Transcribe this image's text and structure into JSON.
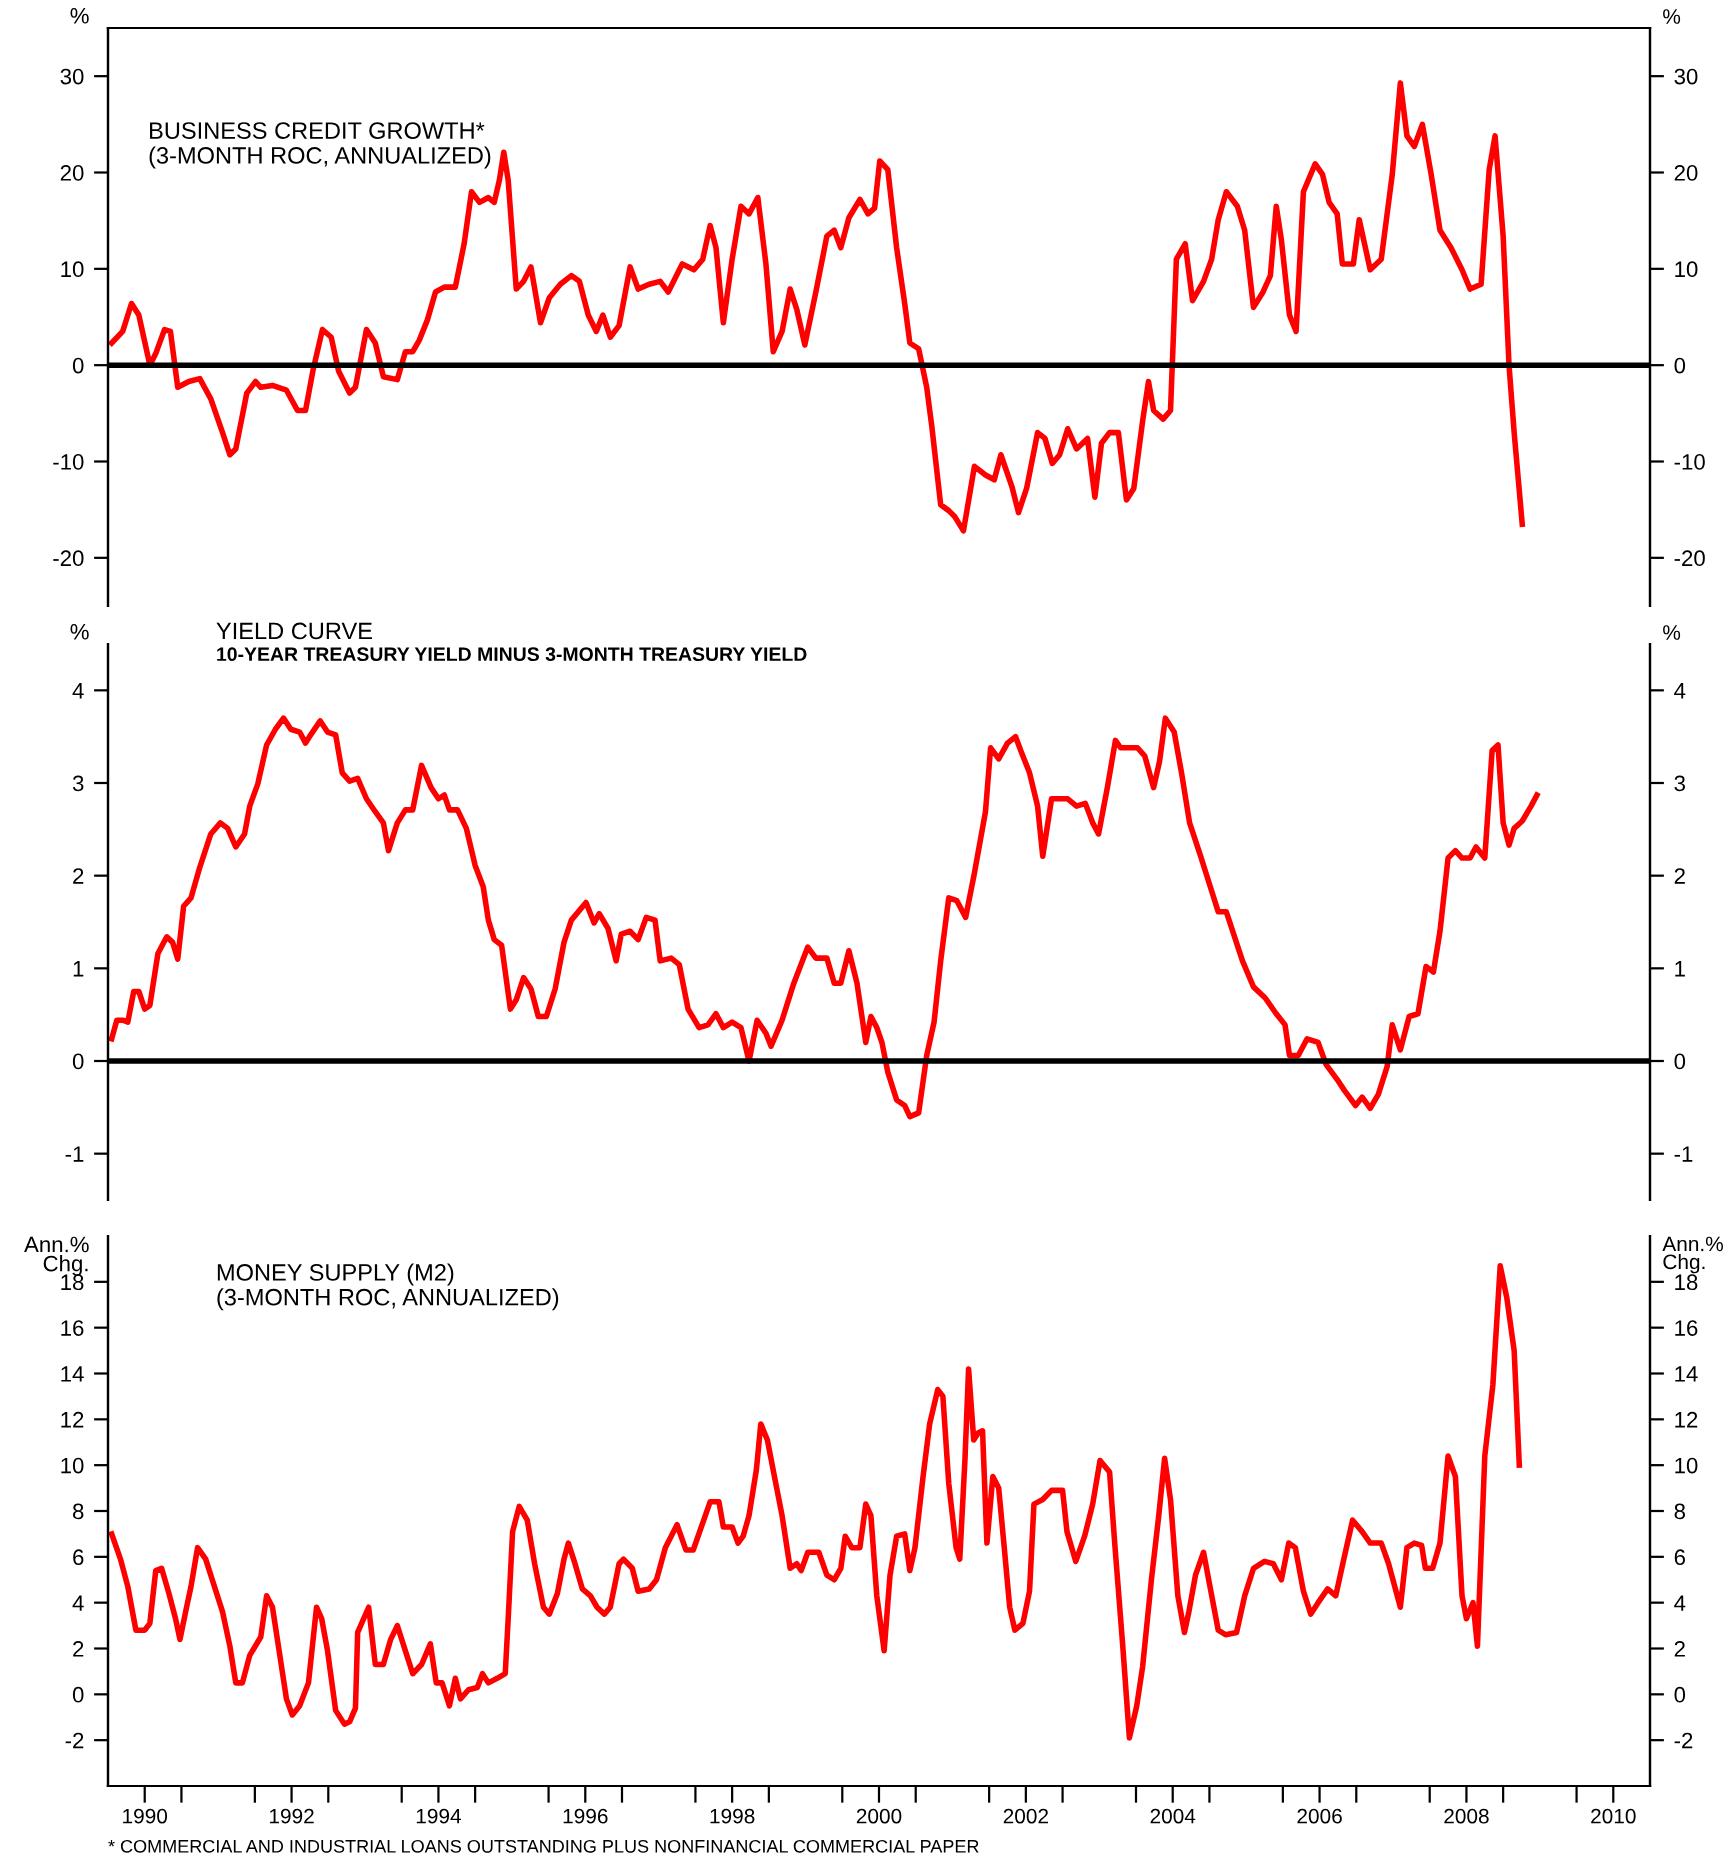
{
  "chart_data": [
    {
      "type": "line",
      "title": "BUSINESS CREDIT GROWTH*",
      "subtitle": "(3-MONTH ROC, ANNUALIZED)",
      "ylabel": "%",
      "y2label": "%",
      "xlim": [
        1990,
        2011
      ],
      "ylim": [
        -25,
        35
      ],
      "yticks": [
        -20,
        -10,
        0,
        10,
        20,
        30
      ],
      "y2lim": [
        -25,
        35
      ],
      "y2ticks": [
        -20,
        -10,
        0,
        10,
        20,
        30
      ],
      "tick_labels": "y",
      "ref_lines": [
        {
          "axis": "y",
          "value": 0,
          "color": "#000000"
        }
      ],
      "x": [
        1990.05,
        1990.2,
        1990.32,
        1990.42,
        1990.57,
        1990.65,
        1990.77,
        1990.85,
        1990.95,
        1991.1,
        1991.25,
        1991.4,
        1991.56,
        1991.66,
        1991.74,
        1991.89,
        1992.01,
        1992.08,
        1992.24,
        1992.43,
        1992.58,
        1992.69,
        1992.79,
        1992.92,
        1993.04,
        1993.14,
        1993.29,
        1993.37,
        1993.52,
        1993.64,
        1993.75,
        1993.94,
        1994.05,
        1994.15,
        1994.24,
        1994.35,
        1994.46,
        1994.58,
        1994.73,
        1994.85,
        1994.95,
        1995.06,
        1995.18,
        1995.26,
        1995.33,
        1995.39,
        1995.45,
        1995.56,
        1995.66,
        1995.76,
        1995.89,
        1996.01,
        1996.16,
        1996.31,
        1996.42,
        1996.54,
        1996.65,
        1996.74,
        1996.84,
        1996.96,
        1997.11,
        1997.22,
        1997.37,
        1997.52,
        1997.63,
        1997.82,
        1997.98,
        1998.1,
        1998.2,
        1998.28,
        1998.38,
        1998.5,
        1998.62,
        1998.73,
        1998.85,
        1998.96,
        1999.06,
        1999.18,
        1999.29,
        1999.38,
        1999.49,
        1999.64,
        1999.79,
        1999.89,
        1999.98,
        2000.09,
        2000.24,
        2000.35,
        2000.44,
        2000.51,
        2000.62,
        2000.74,
        2000.85,
        2000.92,
        2001.04,
        2001.15,
        2001.22,
        2001.34,
        2001.45,
        2001.53,
        2001.65,
        2001.8,
        2001.95,
        2002.07,
        2002.16,
        2002.31,
        2002.4,
        2002.51,
        2002.66,
        2002.76,
        2002.86,
        2002.96,
        2003.07,
        2003.19,
        2003.34,
        2003.44,
        2003.53,
        2003.64,
        2003.76,
        2003.87,
        2003.97,
        2004.09,
        2004.17,
        2004.24,
        2004.37,
        2004.47,
        2004.55,
        2004.67,
        2004.77,
        2004.92,
        2005.03,
        2005.12,
        2005.23,
        2005.38,
        2005.48,
        2005.6,
        2005.73,
        2005.83,
        2005.91,
        2005.98,
        2006.09,
        2006.18,
        2006.28,
        2006.44,
        2006.54,
        2006.63,
        2006.74,
        2006.81,
        2006.96,
        2007.04,
        2007.19,
        2007.34,
        2007.49,
        2007.6,
        2007.69,
        2007.79,
        2007.9,
        2008.02,
        2008.14,
        2008.29,
        2008.44,
        2008.55,
        2008.7,
        2008.81,
        2008.89,
        2009.0,
        2009.08,
        2009.15,
        2009.26
      ],
      "series": [
        {
          "color": "#ff0000",
          "values": [
            2.3,
            3.5,
            6.4,
            5.2,
            0,
            1.2,
            3.7,
            3.5,
            -2.3,
            -1.7,
            -1.4,
            -3.5,
            -7,
            -9.3,
            -8.7,
            -2.9,
            -1.7,
            -2.3,
            -2.1,
            -2.6,
            -4.7,
            -4.7,
            -0.6,
            3.7,
            2.9,
            -0.6,
            -2.9,
            -2.3,
            3.7,
            2.3,
            -1.2,
            -1.5,
            1.4,
            1.4,
            2.6,
            4.7,
            7.6,
            8.1,
            8.1,
            12.6,
            18,
            16.9,
            17.4,
            16.9,
            19.2,
            22.1,
            19.2,
            7.9,
            8.7,
            10.2,
            4.4,
            7,
            8.4,
            9.3,
            8.7,
            5.2,
            3.5,
            5.2,
            2.9,
            4.1,
            10.2,
            7.9,
            8.4,
            8.7,
            7.6,
            10.5,
            9.9,
            11,
            14.5,
            12.2,
            4.4,
            11,
            16.5,
            15.7,
            17.4,
            10.5,
            1.4,
            3.5,
            7.9,
            5.8,
            2.1,
            7.6,
            13.4,
            14,
            12.2,
            15.3,
            17.2,
            15.7,
            16.3,
            21.2,
            20.3,
            12.2,
            6.4,
            2.3,
            1.7,
            -2.3,
            -6.4,
            -14.5,
            -15.1,
            -15.7,
            -17.2,
            -10.5,
            -11.4,
            -11.9,
            -9.3,
            -12.6,
            -15.3,
            -12.8,
            -7,
            -7.6,
            -10.2,
            -9.3,
            -6.6,
            -8.7,
            -7.6,
            -13.7,
            -8.1,
            -7,
            -7,
            -14,
            -12.8,
            -5.8,
            -1.7,
            -4.7,
            -5.6,
            -4.7,
            11,
            12.6,
            6.7,
            8.7,
            11,
            15.1,
            18,
            16.5,
            14,
            6,
            7.6,
            9.3,
            16.5,
            13,
            5.2,
            3.5,
            18,
            20.9,
            19.8,
            16.9,
            15.7,
            10.5,
            10.5,
            15.1,
            9.9,
            11,
            19.8,
            29.3,
            23.8,
            22.7,
            25,
            19.8,
            14,
            12.2,
            9.9,
            7.9,
            8.4,
            20.3,
            23.8,
            13.4,
            0,
            -7,
            -16.5
          ]
        }
      ]
    },
    {
      "type": "line",
      "title": "YIELD CURVE",
      "subtitle": "10-YEAR TREASURY YIELD MINUS 3-MONTH TREASURY YIELD",
      "ylabel": "%",
      "y2label": "%",
      "xlim": [
        1990,
        2011
      ],
      "ylim": [
        -1.5,
        4.5
      ],
      "yticks": [
        -1,
        0,
        1,
        2,
        3,
        4
      ],
      "y2lim": [
        -1.5,
        4.5
      ],
      "y2ticks": [
        -1,
        0,
        1,
        2,
        3,
        4
      ],
      "tick_labels": "y",
      "ref_lines": [
        {
          "axis": "y",
          "value": 0,
          "color": "#000000"
        }
      ],
      "x": [
        1990.05,
        1990.12,
        1990.2,
        1990.27,
        1990.35,
        1990.42,
        1990.5,
        1990.57,
        1990.68,
        1990.8,
        1990.88,
        1990.95,
        1991.03,
        1991.13,
        1991.25,
        1991.4,
        1991.53,
        1991.63,
        1991.74,
        1991.86,
        1991.93,
        1992.04,
        1992.16,
        1992.28,
        1992.39,
        1992.49,
        1992.61,
        1992.69,
        1992.76,
        1992.89,
        1992.99,
        1993.1,
        1993.19,
        1993.29,
        1993.4,
        1993.52,
        1993.64,
        1993.75,
        1993.82,
        1993.94,
        1994.05,
        1994.15,
        1994.27,
        1994.4,
        1994.5,
        1994.58,
        1994.65,
        1994.76,
        1994.88,
        1995.0,
        1995.11,
        1995.18,
        1995.26,
        1995.36,
        1995.48,
        1995.56,
        1995.66,
        1995.76,
        1995.86,
        1995.97,
        1996.09,
        1996.21,
        1996.31,
        1996.51,
        1996.62,
        1996.69,
        1996.81,
        1996.92,
        1996.99,
        1997.11,
        1997.22,
        1997.33,
        1997.45,
        1997.52,
        1997.67,
        1997.78,
        1997.9,
        1998.05,
        1998.17,
        1998.28,
        1998.38,
        1998.5,
        1998.62,
        1998.73,
        1998.84,
        1998.96,
        1999.03,
        1999.18,
        1999.34,
        1999.53,
        1999.64,
        1999.79,
        1999.89,
        1999.98,
        2000.09,
        2000.2,
        2000.32,
        2000.39,
        2000.47,
        2000.54,
        2000.62,
        2000.74,
        2000.85,
        2000.92,
        2001.04,
        2001.15,
        2001.25,
        2001.34,
        2001.45,
        2001.56,
        2001.68,
        2001.8,
        2001.95,
        2002.02,
        2002.13,
        2002.25,
        2002.36,
        2002.43,
        2002.55,
        2002.66,
        2002.73,
        2002.85,
        2002.96,
        2003.07,
        2003.19,
        2003.31,
        2003.41,
        2003.49,
        2003.61,
        2003.72,
        2003.79,
        2003.91,
        2004.02,
        2004.12,
        2004.24,
        2004.32,
        2004.4,
        2004.52,
        2004.62,
        2004.73,
        2004.88,
        2005.0,
        2005.12,
        2005.23,
        2005.33,
        2005.45,
        2005.6,
        2005.76,
        2005.91,
        2006.03,
        2006.09,
        2006.21,
        2006.33,
        2006.48,
        2006.59,
        2006.74,
        2006.84,
        2006.99,
        2007.08,
        2007.19,
        2007.3,
        2007.42,
        2007.49,
        2007.6,
        2007.72,
        2007.84,
        2007.95,
        2008.05,
        2008.14,
        2008.25,
        2008.35,
        2008.44,
        2008.55,
        2008.63,
        2008.75,
        2008.85,
        2008.93,
        2009.0,
        2009.08,
        2009.15,
        2009.26,
        2009.38,
        2009.46
      ],
      "series": [
        {
          "color": "#ff0000",
          "values": [
            0.24,
            0.44,
            0.44,
            0.42,
            0.75,
            0.75,
            0.56,
            0.6,
            1.16,
            1.34,
            1.28,
            1.1,
            1.67,
            1.76,
            2.09,
            2.45,
            2.57,
            2.51,
            2.31,
            2.45,
            2.75,
            2.99,
            3.41,
            3.58,
            3.7,
            3.58,
            3.55,
            3.43,
            3.52,
            3.67,
            3.55,
            3.52,
            3.11,
            3.02,
            3.05,
            2.83,
            2.69,
            2.57,
            2.27,
            2.57,
            2.71,
            2.71,
            3.19,
            2.95,
            2.83,
            2.87,
            2.71,
            2.71,
            2.51,
            2.11,
            1.88,
            1.52,
            1.31,
            1.25,
            0.56,
            0.66,
            0.9,
            0.78,
            0.48,
            0.48,
            0.78,
            1.28,
            1.52,
            1.71,
            1.49,
            1.59,
            1.43,
            1.08,
            1.37,
            1.4,
            1.31,
            1.55,
            1.52,
            1.08,
            1.11,
            1.04,
            0.56,
            0.36,
            0.39,
            0.51,
            0.36,
            0.42,
            0.36,
            0,
            0.44,
            0.3,
            0.16,
            0.44,
            0.84,
            1.23,
            1.11,
            1.11,
            0.84,
            0.84,
            1.19,
            0.84,
            0.2,
            0.48,
            0.36,
            0.2,
            -0.12,
            -0.42,
            -0.48,
            -0.6,
            -0.56,
            0.06,
            0.42,
            1.08,
            1.76,
            1.73,
            1.55,
            2.03,
            2.69,
            3.38,
            3.26,
            3.43,
            3.5,
            3.35,
            3.11,
            2.75,
            2.21,
            2.83,
            2.83,
            2.83,
            2.75,
            2.78,
            2.57,
            2.45,
            2.95,
            3.46,
            3.38,
            3.38,
            3.38,
            3.29,
            2.95,
            3.23,
            3.7,
            3.55,
            3.11,
            2.57,
            2.21,
            1.91,
            1.61,
            1.61,
            1.37,
            1.08,
            0.8,
            0.68,
            0.51,
            0.39,
            0.06,
            0.06,
            0.24,
            0.2,
            -0.04,
            -0.2,
            -0.32,
            -0.48,
            -0.39,
            -0.51,
            -0.36,
            -0.06,
            0.39,
            0.12,
            0.48,
            0.51,
            1.02,
            0.96,
            1.4,
            2.19,
            2.27,
            2.19,
            2.19,
            2.31,
            2.19,
            3.35,
            3.41,
            2.57,
            2.33,
            2.51,
            2.59,
            2.75,
            2.87
          ]
        }
      ]
    },
    {
      "type": "line",
      "title": "MONEY SUPPLY (M2)",
      "subtitle": "(3-MONTH ROC, ANNUALIZED)",
      "ylabel": "Ann.%\nChg.",
      "y2label": "Ann.%\nChg.",
      "xlim": [
        1990,
        2011
      ],
      "ylim": [
        -4,
        20
      ],
      "yticks": [
        -2,
        0,
        2,
        4,
        6,
        8,
        10,
        12,
        14,
        16,
        18
      ],
      "y2lim": [
        -4,
        20
      ],
      "y2ticks": [
        -2,
        0,
        2,
        4,
        6,
        8,
        10,
        12,
        14,
        16,
        18
      ],
      "xticks": [
        {
          "value": 1990.5,
          "label": "1990"
        },
        {
          "value": 1991,
          "label": null
        },
        {
          "value": 1992,
          "label": null
        },
        {
          "value": 1992.5,
          "label": "1992"
        },
        {
          "value": 1993,
          "label": null
        },
        {
          "value": 1994,
          "label": null
        },
        {
          "value": 1994.5,
          "label": "1994"
        },
        {
          "value": 1995,
          "label": null
        },
        {
          "value": 1996,
          "label": null
        },
        {
          "value": 1996.5,
          "label": "1996"
        },
        {
          "value": 1997,
          "label": null
        },
        {
          "value": 1998,
          "label": null
        },
        {
          "value": 1998.5,
          "label": "1998"
        },
        {
          "value": 1999,
          "label": null
        },
        {
          "value": 2000,
          "label": null
        },
        {
          "value": 2000.5,
          "label": "2000"
        },
        {
          "value": 2001,
          "label": null
        },
        {
          "value": 2002,
          "label": null
        },
        {
          "value": 2002.5,
          "label": "2002"
        },
        {
          "value": 2003,
          "label": null
        },
        {
          "value": 2004,
          "label": null
        },
        {
          "value": 2004.5,
          "label": "2004"
        },
        {
          "value": 2005,
          "label": null
        },
        {
          "value": 2006,
          "label": null
        },
        {
          "value": 2006.5,
          "label": "2006"
        },
        {
          "value": 2007,
          "label": null
        },
        {
          "value": 2008,
          "label": null
        },
        {
          "value": 2008.5,
          "label": "2008"
        },
        {
          "value": 2009,
          "label": null
        },
        {
          "value": 2010,
          "label": null
        },
        {
          "value": 2010.5,
          "label": "2010"
        }
      ],
      "annotations": [
        "* COMMERCIAL AND INDUSTRIAL LOANS OUTSTANDING PLUS NONFINANCIAL COMMERCIAL PAPER"
      ],
      "x": [
        1990.05,
        1990.17,
        1990.27,
        1990.38,
        1990.5,
        1990.57,
        1990.65,
        1990.73,
        1990.83,
        1990.92,
        1990.98,
        1991.07,
        1991.13,
        1991.22,
        1991.33,
        1991.45,
        1991.56,
        1991.66,
        1991.74,
        1991.83,
        1991.93,
        1992.08,
        1992.16,
        1992.24,
        1992.34,
        1992.43,
        1992.51,
        1992.61,
        1992.73,
        1992.84,
        1992.91,
        1992.99,
        1993.1,
        1993.22,
        1993.29,
        1993.37,
        1993.4,
        1993.55,
        1993.64,
        1993.75,
        1993.85,
        1993.94,
        1994.05,
        1994.15,
        1994.27,
        1994.39,
        1994.47,
        1994.55,
        1994.65,
        1994.73,
        1994.8,
        1994.91,
        1995.03,
        1995.1,
        1995.18,
        1995.3,
        1995.41,
        1995.45,
        1995.51,
        1995.6,
        1995.71,
        1995.81,
        1995.93,
        1996.01,
        1996.12,
        1996.21,
        1996.27,
        1996.36,
        1996.46,
        1996.57,
        1996.66,
        1996.76,
        1996.84,
        1996.96,
        1997.02,
        1997.14,
        1997.22,
        1997.37,
        1997.47,
        1997.59,
        1997.75,
        1997.87,
        1997.97,
        1998.08,
        1998.2,
        1998.32,
        1998.38,
        1998.5,
        1998.58,
        1998.65,
        1998.73,
        1998.83,
        1998.89,
        1998.98,
        1999.07,
        1999.18,
        1999.29,
        1999.38,
        1999.44,
        1999.53,
        1999.68,
        1999.79,
        1999.89,
        1999.98,
        2000.04,
        2000.13,
        2000.24,
        2000.32,
        2000.39,
        2000.47,
        2000.57,
        2000.65,
        2000.74,
        2000.85,
        2000.92,
        2000.99,
        2001.1,
        2001.19,
        2001.3,
        2001.37,
        2001.45,
        2001.55,
        2001.6,
        2001.67,
        2001.72,
        2001.79,
        2001.85,
        2001.91,
        2001.97,
        2002.05,
        2002.13,
        2002.2,
        2002.28,
        2002.35,
        2002.46,
        2002.55,
        2002.61,
        2002.73,
        2002.85,
        2003.0,
        2003.06,
        2003.18,
        2003.3,
        2003.41,
        2003.51,
        2003.64,
        2003.71,
        2003.82,
        2003.91,
        2004.01,
        2004.09,
        2004.21,
        2004.31,
        2004.39,
        2004.47,
        2004.57,
        2004.66,
        2004.72,
        2004.81,
        2004.92,
        2004.99,
        2005.12,
        2005.22,
        2005.37,
        2005.48,
        2005.6,
        2005.75,
        2005.87,
        2005.98,
        2006.08,
        2006.17,
        2006.28,
        2006.38,
        2006.48,
        2006.61,
        2006.72,
        2006.83,
        2006.95,
        2007.08,
        2007.19,
        2007.34,
        2007.44,
        2007.6,
        2007.69,
        2007.79,
        2007.89,
        2007.94,
        2008.04,
        2008.14,
        2008.25,
        2008.35,
        2008.44,
        2008.5,
        2008.59,
        2008.65,
        2008.75,
        2008.86,
        2008.96,
        2009.05,
        2009.15,
        2009.22
      ],
      "series": [
        {
          "color": "#ff0000",
          "values": [
            7.0,
            5.9,
            4.7,
            2.8,
            2.8,
            3.1,
            5.4,
            5.5,
            4.4,
            3.3,
            2.4,
            3.8,
            4.7,
            6.4,
            5.9,
            4.7,
            3.6,
            2.1,
            0.5,
            0.5,
            1.7,
            2.5,
            4.3,
            3.8,
            1.7,
            -0.2,
            -0.9,
            -0.5,
            0.5,
            3.8,
            3.3,
            1.9,
            -0.7,
            -1.3,
            -1.2,
            -0.6,
            2.7,
            3.8,
            1.3,
            1.3,
            2.4,
            3.0,
            1.9,
            0.9,
            1.3,
            2.2,
            0.5,
            0.5,
            -0.5,
            0.7,
            -0.2,
            0.2,
            0.3,
            0.9,
            0.5,
            0.7,
            0.9,
            3.3,
            7.1,
            8.2,
            7.6,
            5.7,
            3.8,
            3.5,
            4.4,
            5.9,
            6.6,
            5.7,
            4.6,
            4.3,
            3.8,
            3.5,
            3.8,
            5.7,
            5.9,
            5.5,
            4.5,
            4.6,
            5.0,
            6.4,
            7.4,
            6.3,
            6.3,
            7.3,
            8.4,
            8.4,
            7.3,
            7.3,
            6.6,
            6.9,
            7.8,
            9.8,
            11.8,
            11.1,
            9.6,
            7.8,
            5.5,
            5.7,
            5.4,
            6.2,
            6.2,
            5.2,
            5.0,
            5.5,
            6.9,
            6.4,
            6.4,
            8.3,
            7.8,
            4.3,
            1.9,
            5.2,
            6.9,
            7.0,
            5.4,
            6.4,
            9.5,
            11.8,
            13.3,
            13.0,
            9.2,
            6.4,
            5.9,
            10.2,
            14.2,
            11.1,
            11.4,
            11.5,
            6.6,
            9.5,
            9.0,
            6.6,
            3.8,
            2.8,
            3.1,
            4.5,
            8.3,
            8.5,
            8.9,
            8.9,
            7.1,
            5.8,
            6.9,
            8.3,
            10.2,
            9.7,
            6.6,
            2.1,
            -1.9,
            -0.5,
            1.2,
            5.0,
            7.8,
            10.3,
            8.5,
            4.3,
            2.7,
            3.6,
            5.2,
            6.2,
            5.0,
            2.8,
            2.6,
            2.7,
            4.3,
            5.5,
            5.8,
            5.7,
            5.0,
            6.6,
            6.4,
            4.5,
            3.5,
            4.0,
            4.6,
            4.3,
            5.9,
            7.6,
            7.1,
            6.6,
            6.6,
            5.7,
            3.8,
            6.4,
            6.6,
            6.5,
            5.5,
            5.5,
            6.6,
            10.4,
            9.5,
            4.3,
            3.3,
            4.0,
            2.1,
            10.4,
            13.5,
            18.7,
            17.3,
            15.0,
            10.0
          ]
        }
      ]
    }
  ]
}
